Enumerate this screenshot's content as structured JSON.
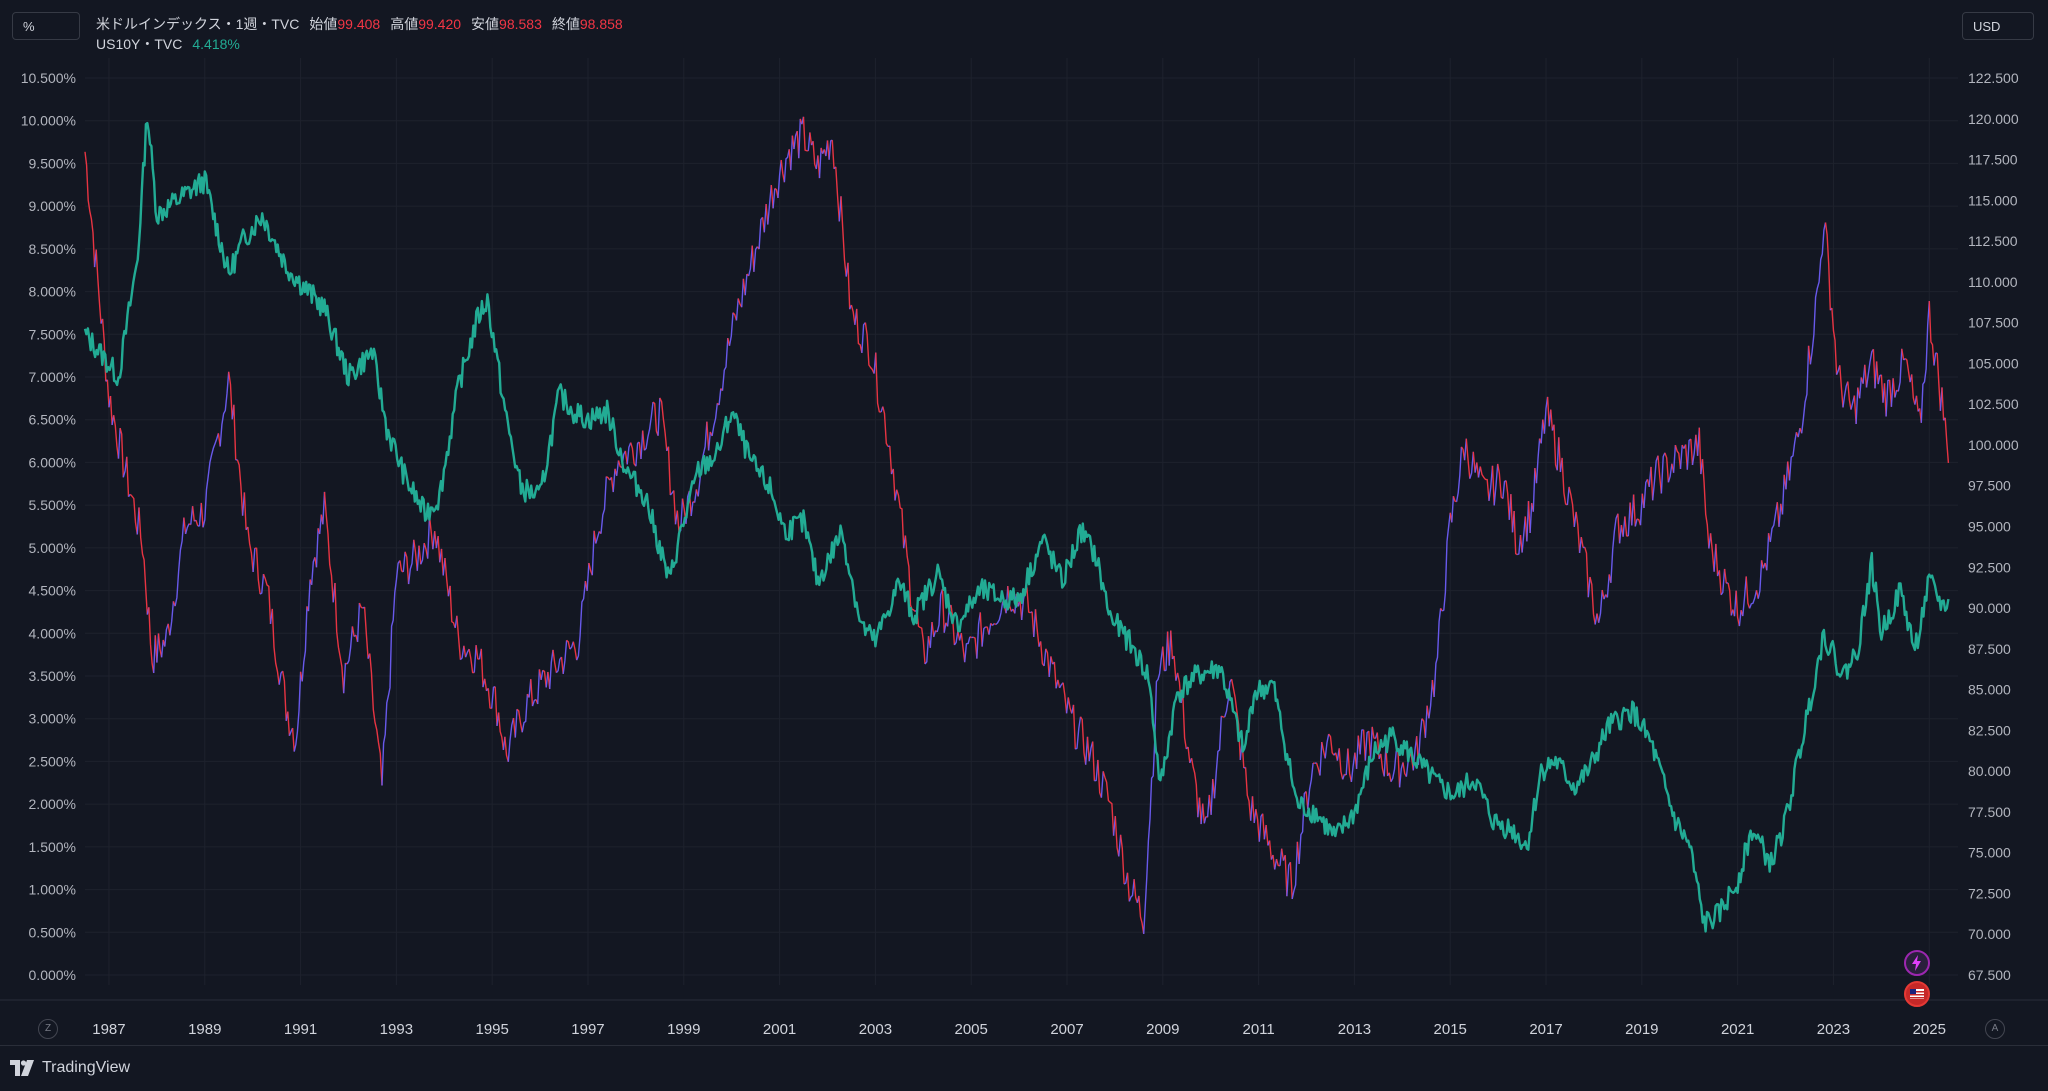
{
  "toolbar": {
    "left_scale_label": "%",
    "right_scale_label": "USD",
    "z_label": "Z",
    "a_label": "A"
  },
  "legend": {
    "main_symbol": "米ドルインデックス・1週・TVC",
    "open_label": "始値",
    "open_value": "99.408",
    "high_label": "高値",
    "high_value": "99.420",
    "low_label": "安値",
    "low_value": "98.583",
    "close_label": "終値",
    "close_value": "98.858",
    "second_symbol": "US10Y・TVC",
    "second_value": "4.418%"
  },
  "brand": {
    "name": "TradingView"
  },
  "colors": {
    "background": "#131722",
    "yield_line": "#22ab94",
    "dxy_up": "#6d5df5",
    "dxy_down": "#f23645",
    "grid": "#1e222d"
  },
  "chart_data": {
    "type": "line",
    "x_ticks": [
      "1987",
      "1989",
      "1991",
      "1993",
      "1995",
      "1997",
      "1999",
      "2001",
      "2003",
      "2005",
      "2007",
      "2009",
      "2011",
      "2013",
      "2015",
      "2017",
      "2019",
      "2021",
      "2023",
      "2025"
    ],
    "x_range": [
      1986.5,
      2025.6
    ],
    "left_axis": {
      "ticks": [
        "10.500%",
        "10.000%",
        "9.500%",
        "9.000%",
        "8.500%",
        "8.000%",
        "7.500%",
        "7.000%",
        "6.500%",
        "6.000%",
        "5.500%",
        "5.000%",
        "4.500%",
        "4.000%",
        "3.500%",
        "3.000%",
        "2.500%",
        "2.000%",
        "1.500%",
        "1.000%",
        "0.500%",
        "0.000%"
      ],
      "range": [
        0,
        10.5
      ]
    },
    "right_axis": {
      "ticks": [
        "122.500",
        "120.000",
        "117.500",
        "115.000",
        "112.500",
        "110.000",
        "107.500",
        "105.000",
        "102.500",
        "100.000",
        "97.500",
        "95.000",
        "92.500",
        "90.000",
        "87.500",
        "85.000",
        "82.500",
        "80.000",
        "77.500",
        "75.000",
        "72.500",
        "70.000",
        "67.500"
      ],
      "range": [
        67.5,
        122.5
      ]
    },
    "series": [
      {
        "name": "US10Y・TVC",
        "axis": "left",
        "x": [
          1986.5,
          1986.8,
          1987.2,
          1987.6,
          1987.8,
          1988.0,
          1988.5,
          1989.0,
          1989.5,
          1989.8,
          1990.2,
          1990.7,
          1991.0,
          1991.5,
          1992.0,
          1992.5,
          1992.8,
          1993.2,
          1993.6,
          1993.9,
          1994.3,
          1994.7,
          1994.9,
          1995.3,
          1995.6,
          1996.0,
          1996.4,
          1996.7,
          1997.0,
          1997.4,
          1997.8,
          1998.2,
          1998.7,
          1998.9,
          1999.3,
          1999.7,
          2000.0,
          2000.4,
          2000.8,
          2001.1,
          2001.5,
          2001.8,
          2002.3,
          2002.7,
          2003.0,
          2003.5,
          2003.8,
          2004.3,
          2004.7,
          2005.2,
          2005.7,
          2006.0,
          2006.5,
          2006.9,
          2007.3,
          2007.6,
          2007.9,
          2008.3,
          2008.7,
          2008.95,
          2009.3,
          2009.7,
          2010.2,
          2010.7,
          2010.9,
          2011.3,
          2011.8,
          2012.2,
          2012.6,
          2013.0,
          2013.4,
          2013.8,
          2014.3,
          2014.8,
          2015.1,
          2015.5,
          2015.9,
          2016.3,
          2016.6,
          2016.9,
          2017.2,
          2017.6,
          2017.9,
          2018.3,
          2018.8,
          2019.2,
          2019.7,
          2020.0,
          2020.3,
          2020.6,
          2021.0,
          2021.3,
          2021.7,
          2022.0,
          2022.4,
          2022.8,
          2023.2,
          2023.5,
          2023.8,
          2024.0,
          2024.4,
          2024.7,
          2025.0,
          2025.3,
          2025.4
        ],
        "values": [
          7.5,
          7.3,
          7.0,
          8.4,
          10.1,
          8.9,
          9.1,
          9.3,
          8.2,
          8.6,
          8.9,
          8.3,
          8.1,
          7.8,
          7.0,
          7.3,
          6.4,
          5.8,
          5.4,
          5.6,
          6.9,
          7.7,
          7.9,
          6.5,
          5.7,
          5.6,
          6.8,
          6.6,
          6.5,
          6.6,
          5.9,
          5.6,
          4.6,
          5.1,
          5.9,
          6.1,
          6.6,
          6.0,
          5.7,
          5.2,
          5.3,
          4.6,
          5.2,
          4.1,
          3.9,
          4.6,
          4.2,
          4.7,
          4.1,
          4.5,
          4.4,
          4.4,
          5.1,
          4.6,
          5.2,
          4.9,
          4.2,
          3.9,
          3.5,
          2.2,
          3.3,
          3.5,
          3.6,
          2.6,
          3.3,
          3.4,
          2.0,
          1.9,
          1.6,
          1.9,
          2.6,
          2.8,
          2.5,
          2.2,
          2.1,
          2.3,
          1.8,
          1.7,
          1.5,
          2.4,
          2.5,
          2.2,
          2.4,
          2.9,
          3.1,
          2.7,
          1.8,
          1.5,
          0.6,
          0.7,
          1.1,
          1.7,
          1.3,
          1.8,
          2.9,
          4.0,
          3.5,
          3.8,
          4.8,
          4.0,
          4.5,
          3.8,
          4.6,
          4.3,
          4.4
        ]
      },
      {
        "name": "米ドルインデックス・1週・TVC",
        "axis": "right",
        "x": [
          1986.5,
          1986.7,
          1987.0,
          1987.3,
          1987.7,
          1987.9,
          1988.2,
          1988.6,
          1989.0,
          1989.5,
          1989.9,
          1990.3,
          1990.7,
          1990.9,
          1991.2,
          1991.5,
          1991.9,
          1992.3,
          1992.7,
          1993.0,
          1993.4,
          1993.8,
          1994.3,
          1994.7,
          1995.1,
          1995.3,
          1995.7,
          1996.2,
          1996.8,
          1997.2,
          1997.6,
          1998.0,
          1998.5,
          1998.9,
          1999.3,
          1999.7,
          2000.1,
          2000.5,
          2000.9,
          2001.2,
          2001.5,
          2001.8,
          2002.1,
          2002.5,
          2002.9,
          2003.3,
          2003.7,
          2004.0,
          2004.4,
          2004.9,
          2005.3,
          2005.8,
          2006.2,
          2006.7,
          2007.1,
          2007.5,
          2007.9,
          2008.3,
          2008.6,
          2008.9,
          2009.2,
          2009.6,
          2009.9,
          2010.4,
          2010.8,
          2011.3,
          2011.7,
          2012.1,
          2012.5,
          2012.9,
          2013.3,
          2013.8,
          2014.3,
          2014.7,
          2015.0,
          2015.3,
          2015.7,
          2016.1,
          2016.4,
          2016.7,
          2017.0,
          2017.3,
          2017.7,
          2018.1,
          2018.5,
          2018.9,
          2019.3,
          2019.7,
          2020.2,
          2020.4,
          2020.8,
          2021.0,
          2021.5,
          2021.9,
          2022.3,
          2022.7,
          2022.8,
          2023.1,
          2023.4,
          2023.8,
          2024.1,
          2024.5,
          2024.8,
          2025.0,
          2025.3,
          2025.4
        ],
        "values": [
          118.0,
          112.0,
          103.0,
          99.0,
          94.0,
          87.0,
          88.0,
          95.0,
          96.0,
          104.0,
          94.0,
          91.0,
          84.0,
          82.0,
          92.0,
          96.0,
          86.0,
          90.0,
          79.0,
          92.0,
          93.0,
          95.0,
          88.0,
          87.0,
          84.0,
          81.0,
          84.0,
          86.0,
          88.0,
          95.0,
          99.0,
          100.0,
          102.0,
          95.0,
          98.0,
          103.0,
          108.0,
          112.0,
          116.0,
          118.0,
          119.0,
          117.0,
          119.0,
          108.0,
          106.0,
          100.0,
          92.0,
          87.0,
          90.0,
          87.0,
          89.0,
          91.0,
          90.0,
          86.0,
          83.0,
          81.0,
          78.0,
          73.0,
          71.0,
          86.0,
          88.0,
          80.0,
          76.0,
          86.0,
          78.0,
          75.0,
          73.0,
          80.0,
          82.0,
          80.0,
          82.0,
          80.0,
          81.0,
          86.0,
          95.0,
          100.0,
          97.0,
          98.0,
          94.0,
          96.0,
          102.0,
          99.0,
          94.0,
          89.0,
          95.0,
          96.0,
          98.0,
          99.0,
          100.0,
          94.0,
          91.0,
          90.0,
          92.0,
          96.0,
          101.0,
          110.0,
          114.0,
          104.0,
          102.0,
          105.0,
          103.0,
          105.0,
          101.0,
          108.0,
          102.0,
          98.9
        ]
      }
    ]
  }
}
